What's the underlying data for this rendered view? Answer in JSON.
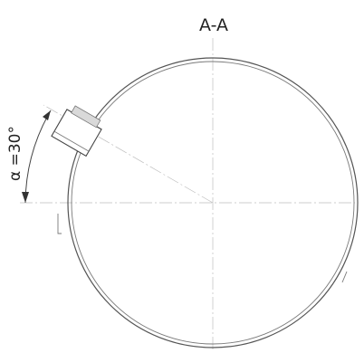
{
  "section": {
    "title": "A-A"
  },
  "dimension": {
    "angle_label": "α =30°",
    "angle_degrees": 30
  }
}
